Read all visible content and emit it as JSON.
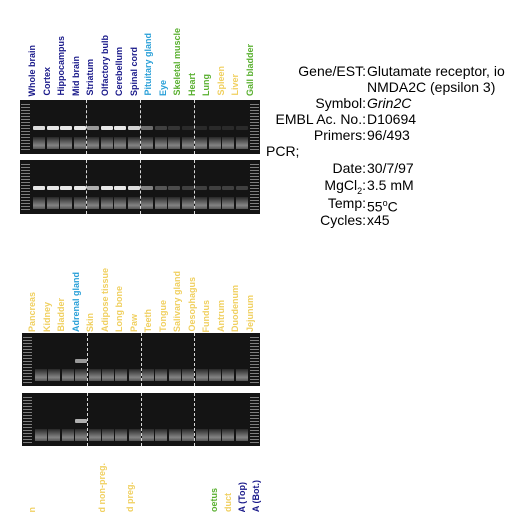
{
  "panel1": {
    "labels": [
      {
        "text": "Whole brain",
        "color": "#1a1a8a"
      },
      {
        "text": "Cortex",
        "color": "#1a1a8a"
      },
      {
        "text": "Hippocampus",
        "color": "#1a1a8a"
      },
      {
        "text": "Mid brain",
        "color": "#1a1a8a"
      },
      {
        "text": "Striatum",
        "color": "#1a1a8a"
      },
      {
        "text": "Olfactory bulb",
        "color": "#1a1a8a"
      },
      {
        "text": "Cerebellum",
        "color": "#1a1a8a"
      },
      {
        "text": "Spinal cord",
        "color": "#1a1a8a"
      },
      {
        "text": "Pituitary gland",
        "color": "#2aa0d8"
      },
      {
        "text": "Eye",
        "color": "#2aa0d8"
      },
      {
        "text": "Skeletal muscle",
        "color": "#5ab030"
      },
      {
        "text": "Heart",
        "color": "#5ab030"
      },
      {
        "text": "Lung",
        "color": "#5ab030"
      },
      {
        "text": "Spleen",
        "color": "#f0d060"
      },
      {
        "text": "Liver",
        "color": "#f0d060"
      },
      {
        "text": "Gall bladder",
        "color": "#5ab030"
      }
    ]
  },
  "panel2": {
    "labels": [
      {
        "text": "Pancreas",
        "color": "#f0d060"
      },
      {
        "text": "Kidney",
        "color": "#f0d060"
      },
      {
        "text": "Bladder",
        "color": "#f0d060"
      },
      {
        "text": "Adrenal gland",
        "color": "#2aa0d8"
      },
      {
        "text": "Skin",
        "color": "#f0d060"
      },
      {
        "text": "Adipose tissue",
        "color": "#f0d060"
      },
      {
        "text": "Long bone",
        "color": "#f0d060"
      },
      {
        "text": "Paw",
        "color": "#f0d060"
      },
      {
        "text": "Teeth",
        "color": "#f0d060"
      },
      {
        "text": "Tongue",
        "color": "#f0d060"
      },
      {
        "text": "Salivary gland",
        "color": "#f0d060"
      },
      {
        "text": "Oesophagus",
        "color": "#f0d060"
      },
      {
        "text": "Fundus",
        "color": "#f0d060"
      },
      {
        "text": "Antrum",
        "color": "#f0d060"
      },
      {
        "text": "Duodenum",
        "color": "#f0d060"
      },
      {
        "text": "Jejunum",
        "color": "#f0d060"
      }
    ]
  },
  "panel3": {
    "labels": [
      {
        "text": "n",
        "color": "#f0d060"
      },
      {
        "text": "",
        "color": "#f0d060"
      },
      {
        "text": "",
        "color": "#f0d060"
      },
      {
        "text": "",
        "color": "#f0d060"
      },
      {
        "text": "",
        "color": "#f0d060"
      },
      {
        "text": "d non-preg.",
        "color": "#f0d060"
      },
      {
        "text": "",
        "color": "#f0d060"
      },
      {
        "text": "d preg.",
        "color": "#f0d060"
      },
      {
        "text": "",
        "color": "#f0d060"
      },
      {
        "text": "",
        "color": "#f0d060"
      },
      {
        "text": "",
        "color": "#f0d060"
      },
      {
        "text": "",
        "color": "#f0d060"
      },
      {
        "text": "",
        "color": "#f0d060"
      },
      {
        "text": "oetus",
        "color": "#5ab030"
      },
      {
        "text": "duct",
        "color": "#f0d060"
      },
      {
        "text": "A (Top)",
        "color": "#1a1a8a"
      },
      {
        "text": "A (Bot.)",
        "color": "#1a1a8a"
      }
    ]
  },
  "info": {
    "gene_key": "Gene/EST:",
    "gene_val1": "Glutamate receptor, io",
    "gene_val2": "NMDA2C (epsilon 3)",
    "symbol_key": "Symbol:",
    "symbol_val": "Grin2C",
    "embl_key": "EMBL Ac. No.:",
    "embl_val": "D10694",
    "primers_key": "Primers:",
    "primers_val": "96/493",
    "pcr_label": "PCR;",
    "date_key": "Date:",
    "date_val": "30/7/97",
    "mgcl_key": "MgCl",
    "mgcl_sub": "2",
    "mgcl_colon": ":",
    "mgcl_val": "3.5 mM",
    "temp_key": "Temp:",
    "temp_val": "55",
    "temp_sup": "o",
    "temp_unit": "C",
    "cycles_key": "Cycles:",
    "cycles_val": "x45"
  },
  "gels": {
    "panel1_band_intensity": [
      0.9,
      0.95,
      0.95,
      0.95,
      0.6,
      0.95,
      0.95,
      0.85,
      0.4,
      0.2,
      0.15,
      0.1,
      0.1,
      0.1,
      0.1,
      0.1
    ],
    "panel1b_band_intensity": [
      0.95,
      0.95,
      0.95,
      0.95,
      0.7,
      0.95,
      0.95,
      0.9,
      0.5,
      0.3,
      0.25,
      0.2,
      0.2,
      0.2,
      0.2,
      0.2
    ],
    "panel2_band_intensity": [
      0,
      0,
      0,
      0.6,
      0,
      0,
      0,
      0,
      0,
      0,
      0,
      0,
      0,
      0,
      0,
      0
    ],
    "panel2b_band_intensity": [
      0,
      0,
      0,
      0.7,
      0,
      0,
      0,
      0,
      0,
      0,
      0,
      0,
      0,
      0,
      0,
      0
    ]
  }
}
